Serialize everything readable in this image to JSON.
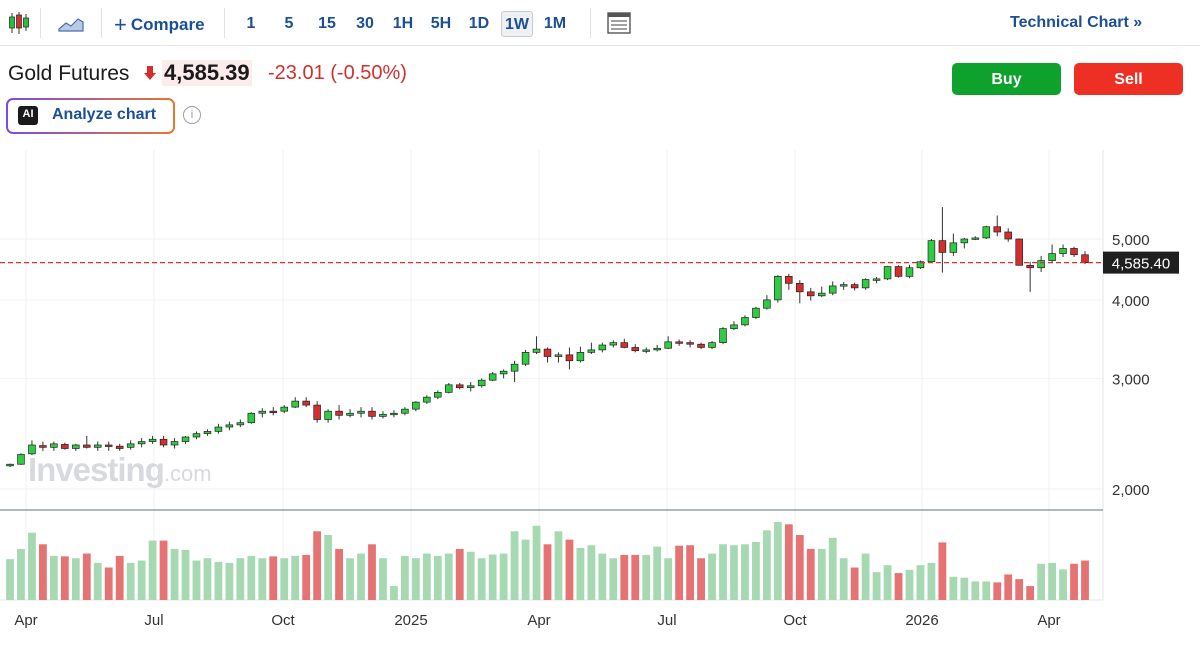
{
  "toolbar": {
    "compare_label": "Compare",
    "intervals": [
      {
        "label": "1"
      },
      {
        "label": "5"
      },
      {
        "label": "15"
      },
      {
        "label": "30"
      },
      {
        "label": "1H"
      },
      {
        "label": "5H"
      },
      {
        "label": "1D"
      },
      {
        "label": "1W",
        "active": true
      },
      {
        "label": "1M"
      }
    ],
    "technical_chart_label": "Technical Chart »",
    "icons": [
      "candlestick-icon",
      "area-chart-icon",
      "plus-icon",
      "table-view-icon"
    ]
  },
  "quote": {
    "name": "Gold Futures",
    "direction_icon": "arrow-down-icon",
    "price": "4,585.39",
    "change": "-23.01 (-0.50%)"
  },
  "actions": {
    "buy_label": "Buy",
    "sell_label": "Sell"
  },
  "analyze": {
    "badge": "AI",
    "label": "Analyze chart",
    "info_icon": "i"
  },
  "watermark": {
    "brand": "Investing",
    "suffix": ".com"
  },
  "colors": {
    "up": "#2ecc40",
    "down": "#d62d2d",
    "volume_up": "#a6d9b2",
    "volume_down": "#e57373",
    "accent": "#1b4f96"
  },
  "chart_data": {
    "type": "candlestick",
    "timeframe": "1W",
    "y_scale": "log",
    "y_ticks": [
      2000,
      3000,
      4000,
      5000
    ],
    "y_tick_labels": [
      "2,000",
      "3,000",
      "4,000",
      "5,000"
    ],
    "x_tick_labels": [
      "Apr",
      "Jul",
      "Oct",
      "2025",
      "Apr",
      "Jul",
      "Oct",
      "2026",
      "Apr"
    ],
    "last_price_label": "4,585.40",
    "last_price": 4585.4,
    "candles": [
      [
        2177,
        2195,
        2168,
        2190,
        88
      ],
      [
        2190,
        2280,
        2185,
        2270,
        110
      ],
      [
        2275,
        2390,
        2265,
        2350,
        145
      ],
      [
        2345,
        2380,
        2300,
        2330,
        120
      ],
      [
        2330,
        2380,
        2300,
        2360,
        95
      ],
      [
        2355,
        2370,
        2310,
        2320,
        94
      ],
      [
        2320,
        2360,
        2300,
        2350,
        90
      ],
      [
        2350,
        2430,
        2320,
        2330,
        100
      ],
      [
        2330,
        2380,
        2300,
        2350,
        80
      ],
      [
        2350,
        2380,
        2300,
        2340,
        70
      ],
      [
        2340,
        2360,
        2300,
        2320,
        95
      ],
      [
        2330,
        2390,
        2310,
        2360,
        80
      ],
      [
        2360,
        2410,
        2330,
        2380,
        85
      ],
      [
        2380,
        2430,
        2360,
        2400,
        128
      ],
      [
        2400,
        2430,
        2330,
        2350,
        128
      ],
      [
        2350,
        2410,
        2320,
        2380,
        110
      ],
      [
        2380,
        2430,
        2360,
        2420,
        108
      ],
      [
        2420,
        2470,
        2400,
        2450,
        85
      ],
      [
        2450,
        2490,
        2430,
        2470,
        90
      ],
      [
        2470,
        2540,
        2450,
        2510,
        82
      ],
      [
        2510,
        2560,
        2480,
        2530,
        80
      ],
      [
        2530,
        2580,
        2510,
        2550,
        90
      ],
      [
        2550,
        2650,
        2540,
        2640,
        95
      ],
      [
        2640,
        2690,
        2600,
        2660,
        90
      ],
      [
        2660,
        2700,
        2620,
        2650,
        94
      ],
      [
        2660,
        2720,
        2640,
        2700,
        90
      ],
      [
        2700,
        2800,
        2690,
        2760,
        95
      ],
      [
        2760,
        2800,
        2700,
        2720,
        97
      ],
      [
        2720,
        2760,
        2550,
        2580,
        148
      ],
      [
        2580,
        2680,
        2550,
        2660,
        140
      ],
      [
        2660,
        2720,
        2580,
        2620,
        110
      ],
      [
        2620,
        2680,
        2600,
        2640,
        90
      ],
      [
        2640,
        2700,
        2600,
        2660,
        100
      ],
      [
        2660,
        2700,
        2580,
        2610,
        120
      ],
      [
        2610,
        2660,
        2590,
        2630,
        90
      ],
      [
        2630,
        2670,
        2600,
        2640,
        30
      ],
      [
        2640,
        2700,
        2620,
        2680,
        95
      ],
      [
        2680,
        2760,
        2660,
        2750,
        90
      ],
      [
        2750,
        2820,
        2730,
        2800,
        100
      ],
      [
        2800,
        2870,
        2780,
        2850,
        95
      ],
      [
        2850,
        2950,
        2840,
        2930,
        100
      ],
      [
        2930,
        2950,
        2880,
        2900,
        110
      ],
      [
        2900,
        2960,
        2860,
        2920,
        104
      ],
      [
        2920,
        3000,
        2900,
        2980,
        90
      ],
      [
        2980,
        3070,
        2970,
        3050,
        98
      ],
      [
        3050,
        3100,
        3000,
        3080,
        100
      ],
      [
        3080,
        3200,
        2960,
        3160,
        148
      ],
      [
        3160,
        3330,
        3140,
        3300,
        130
      ],
      [
        3300,
        3500,
        3280,
        3340,
        160
      ],
      [
        3340,
        3360,
        3180,
        3250,
        120
      ],
      [
        3250,
        3300,
        3180,
        3270,
        148
      ],
      [
        3270,
        3360,
        3100,
        3200,
        130
      ],
      [
        3200,
        3370,
        3180,
        3300,
        112
      ],
      [
        3300,
        3420,
        3280,
        3330,
        118
      ],
      [
        3330,
        3420,
        3300,
        3390,
        100
      ],
      [
        3390,
        3450,
        3360,
        3420,
        90
      ],
      [
        3420,
        3470,
        3350,
        3360,
        97
      ],
      [
        3360,
        3400,
        3300,
        3320,
        97
      ],
      [
        3320,
        3360,
        3290,
        3330,
        97
      ],
      [
        3330,
        3390,
        3310,
        3350,
        115
      ],
      [
        3350,
        3500,
        3340,
        3430,
        90
      ],
      [
        3430,
        3460,
        3380,
        3420,
        117
      ],
      [
        3420,
        3450,
        3360,
        3400,
        118
      ],
      [
        3400,
        3420,
        3340,
        3360,
        90
      ],
      [
        3360,
        3440,
        3340,
        3420,
        100
      ],
      [
        3420,
        3620,
        3400,
        3600,
        120
      ],
      [
        3600,
        3700,
        3580,
        3650,
        118
      ],
      [
        3650,
        3780,
        3630,
        3750,
        120
      ],
      [
        3750,
        3900,
        3730,
        3880,
        125
      ],
      [
        3880,
        4070,
        3860,
        4000,
        150
      ],
      [
        4000,
        4380,
        3960,
        4360,
        168
      ],
      [
        4360,
        4400,
        4150,
        4250,
        163
      ],
      [
        4250,
        4300,
        3950,
        4120,
        140
      ],
      [
        4120,
        4180,
        3990,
        4060,
        110
      ],
      [
        4060,
        4200,
        4040,
        4100,
        110
      ],
      [
        4100,
        4280,
        4070,
        4210,
        134
      ],
      [
        4210,
        4270,
        4150,
        4230,
        90
      ],
      [
        4230,
        4260,
        4140,
        4180,
        70
      ],
      [
        4180,
        4330,
        4150,
        4310,
        100
      ],
      [
        4310,
        4350,
        4250,
        4320,
        60
      ],
      [
        4320,
        4530,
        4300,
        4520,
        75
      ],
      [
        4520,
        4540,
        4340,
        4360,
        58
      ],
      [
        4360,
        4550,
        4330,
        4500,
        65
      ],
      [
        4500,
        4620,
        4480,
        4600,
        75
      ],
      [
        4600,
        5000,
        4580,
        4970,
        80
      ],
      [
        4970,
        5620,
        4420,
        4760,
        124
      ],
      [
        4760,
        5100,
        4700,
        4930,
        50
      ],
      [
        4930,
        5020,
        4830,
        5000,
        48
      ],
      [
        5000,
        5050,
        4980,
        5020,
        40
      ],
      [
        5020,
        5250,
        5000,
        5230,
        40
      ],
      [
        5230,
        5450,
        5050,
        5130,
        38
      ],
      [
        5130,
        5200,
        4950,
        5000,
        55
      ],
      [
        5000,
        5010,
        4540,
        4540,
        45
      ],
      [
        4540,
        4600,
        4120,
        4500,
        30
      ],
      [
        4500,
        4700,
        4430,
        4620,
        78
      ],
      [
        4620,
        4900,
        4580,
        4740,
        80
      ],
      [
        4740,
        4900,
        4680,
        4830,
        66
      ],
      [
        4830,
        4860,
        4680,
        4720,
        78
      ],
      [
        4720,
        4780,
        4560,
        4585,
        85
      ]
    ]
  }
}
